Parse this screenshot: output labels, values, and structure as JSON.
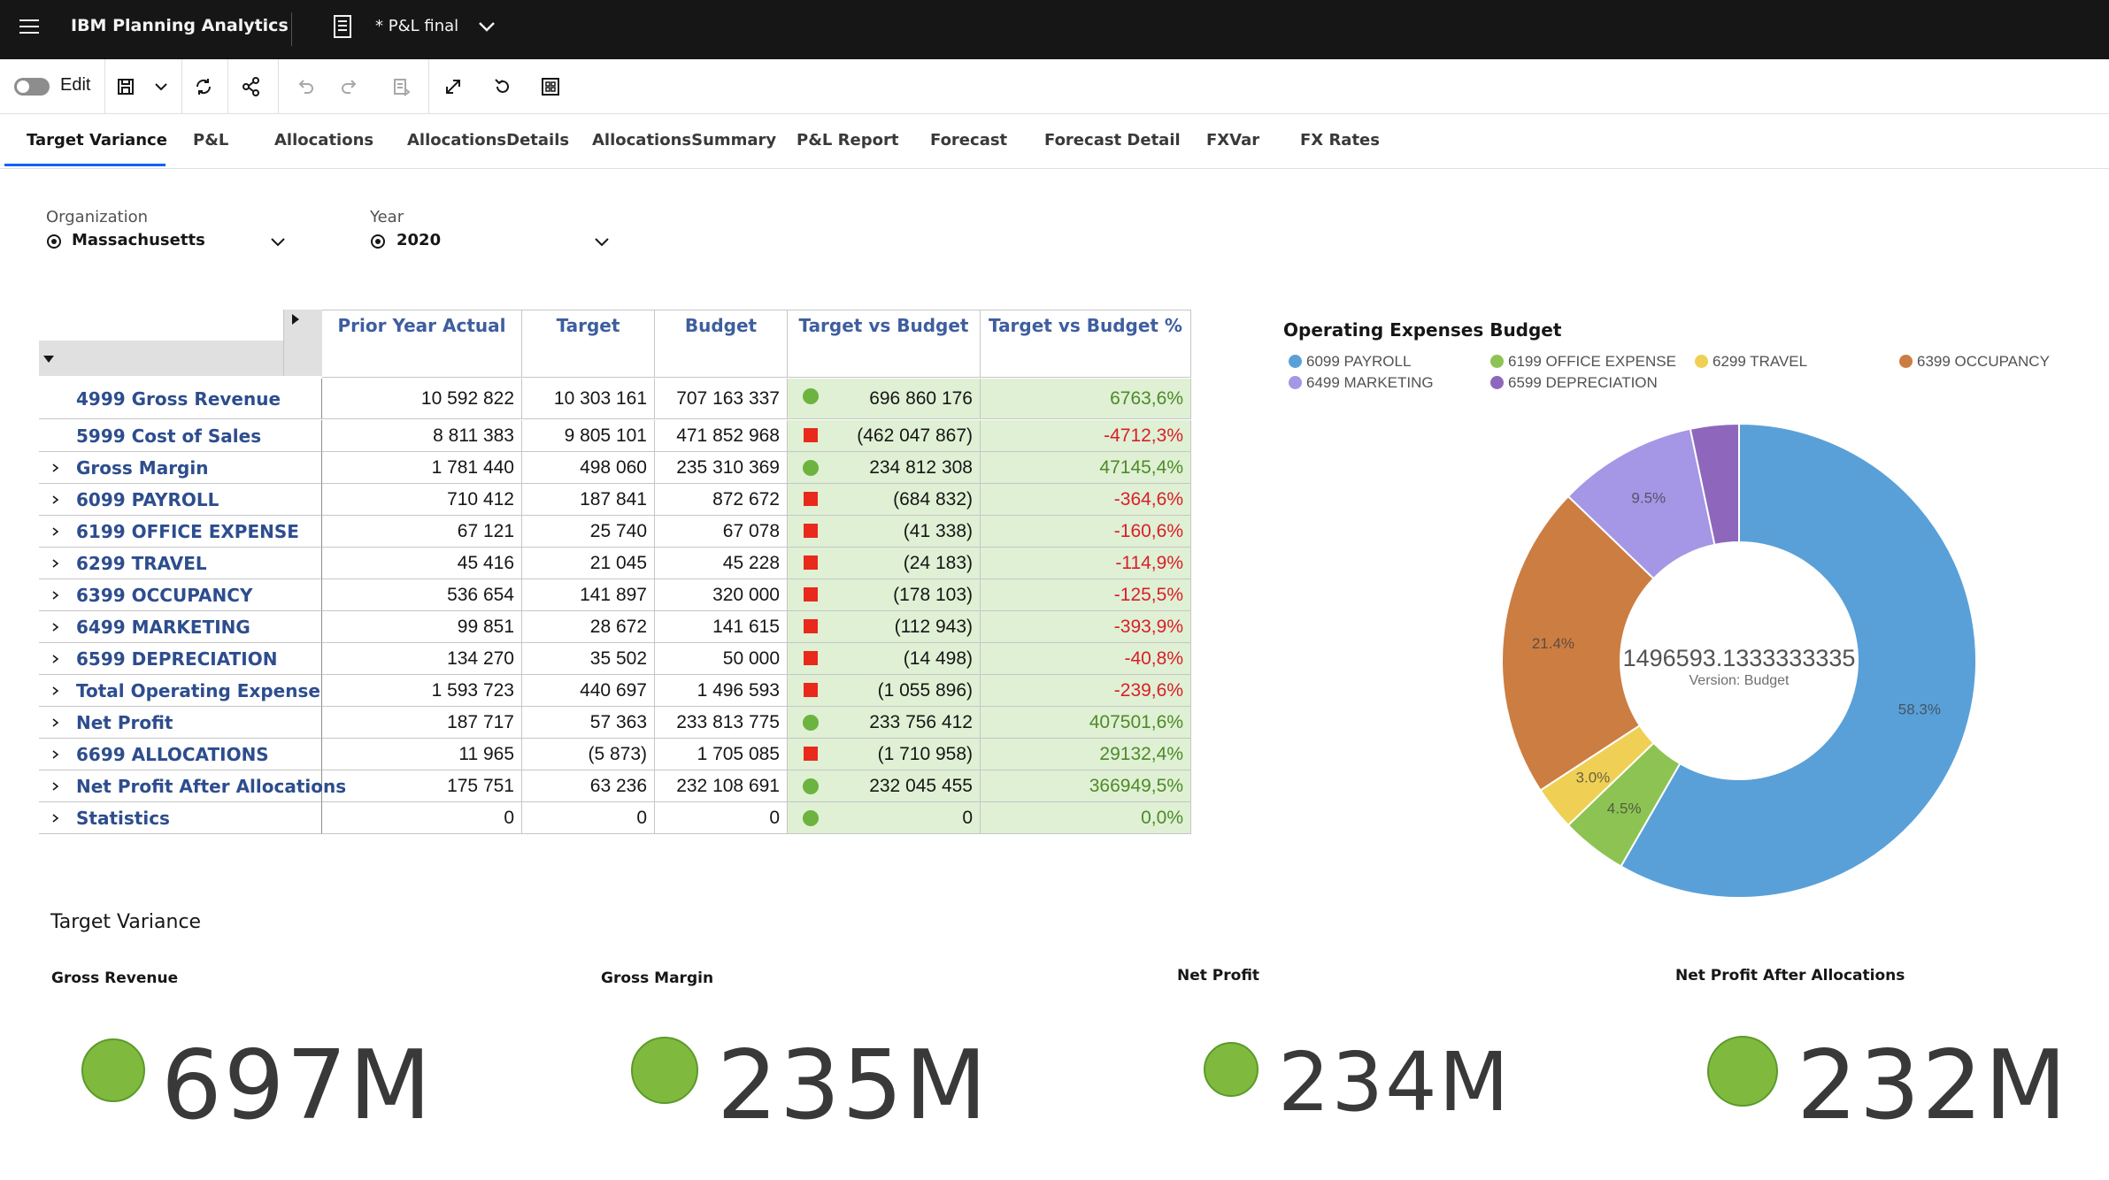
{
  "app": {
    "name": "IBM Planning Analytics",
    "book_title": "* P&L final"
  },
  "toolbar": {
    "edit_label": "Edit"
  },
  "tabs": [
    {
      "label": "Target Variance"
    },
    {
      "label": "P&L"
    },
    {
      "label": "Allocations"
    },
    {
      "label": "AllocationsDetails"
    },
    {
      "label": "AllocationsSummary"
    },
    {
      "label": "P&L Report"
    },
    {
      "label": "Forecast"
    },
    {
      "label": "Forecast Detail"
    },
    {
      "label": "FXVar"
    },
    {
      "label": "FX Rates"
    }
  ],
  "filters": {
    "organization": {
      "label": "Organization",
      "value": "Massachusetts"
    },
    "year": {
      "label": "Year",
      "value": "2020"
    }
  },
  "table": {
    "columns": [
      "Prior Year Actual",
      "Target",
      "Budget",
      "Target vs Budget",
      "Target vs Budget %"
    ],
    "rows": [
      {
        "label": "4999 Gross Revenue",
        "expand": false,
        "pya": "10 592 822",
        "target": "10 303 161",
        "budget": "707 163 337",
        "status": "green",
        "tvb": "696 860 176",
        "pct": "6763,6%",
        "pct_sign": "pos"
      },
      {
        "label": "5999 Cost of Sales",
        "expand": false,
        "pya": "8 811 383",
        "target": "9 805 101",
        "budget": "471 852 968",
        "status": "red",
        "tvb": "(462 047 867)",
        "pct": "-4712,3%",
        "pct_sign": "neg"
      },
      {
        "label": "Gross Margin",
        "expand": true,
        "pya": "1 781 440",
        "target": "498 060",
        "budget": "235 310 369",
        "status": "green",
        "tvb": "234 812 308",
        "pct": "47145,4%",
        "pct_sign": "pos"
      },
      {
        "label": "6099 PAYROLL",
        "expand": true,
        "pya": "710 412",
        "target": "187 841",
        "budget": "872 672",
        "status": "red",
        "tvb": "(684 832)",
        "pct": "-364,6%",
        "pct_sign": "neg"
      },
      {
        "label": "6199 OFFICE EXPENSE",
        "expand": true,
        "pya": "67 121",
        "target": "25 740",
        "budget": "67 078",
        "status": "red",
        "tvb": "(41 338)",
        "pct": "-160,6%",
        "pct_sign": "neg"
      },
      {
        "label": "6299 TRAVEL",
        "expand": true,
        "pya": "45 416",
        "target": "21 045",
        "budget": "45 228",
        "status": "red",
        "tvb": "(24 183)",
        "pct": "-114,9%",
        "pct_sign": "neg"
      },
      {
        "label": "6399 OCCUPANCY",
        "expand": true,
        "pya": "536 654",
        "target": "141 897",
        "budget": "320 000",
        "status": "red",
        "tvb": "(178 103)",
        "pct": "-125,5%",
        "pct_sign": "neg"
      },
      {
        "label": "6499 MARKETING",
        "expand": true,
        "pya": "99 851",
        "target": "28 672",
        "budget": "141 615",
        "status": "red",
        "tvb": "(112 943)",
        "pct": "-393,9%",
        "pct_sign": "neg"
      },
      {
        "label": "6599 DEPRECIATION",
        "expand": true,
        "pya": "134 270",
        "target": "35 502",
        "budget": "50 000",
        "status": "red",
        "tvb": "(14 498)",
        "pct": "-40,8%",
        "pct_sign": "neg"
      },
      {
        "label": "Total Operating Expense",
        "expand": true,
        "pya": "1 593 723",
        "target": "440 697",
        "budget": "1 496 593",
        "status": "red",
        "tvb": "(1 055 896)",
        "pct": "-239,6%",
        "pct_sign": "neg"
      },
      {
        "label": "Net Profit",
        "expand": true,
        "pya": "187 717",
        "target": "57 363",
        "budget": "233 813 775",
        "status": "green",
        "tvb": "233 756 412",
        "pct": "407501,6%",
        "pct_sign": "pos"
      },
      {
        "label": "6699 ALLOCATIONS",
        "expand": true,
        "pya": "11 965",
        "target": "(5 873)",
        "budget": "1 705 085",
        "status": "red",
        "tvb": "(1 710 958)",
        "pct": "29132,4%",
        "pct_sign": "pos"
      },
      {
        "label": "Net Profit After Allocations",
        "expand": true,
        "pya": "175 751",
        "target": "63 236",
        "budget": "232 108 691",
        "status": "green",
        "tvb": "232 045 455",
        "pct": "366949,5%",
        "pct_sign": "pos"
      },
      {
        "label": "Statistics",
        "expand": true,
        "pya": "0",
        "target": "0",
        "budget": "0",
        "status": "green",
        "tvb": "0",
        "pct": "0,0%",
        "pct_sign": "pos"
      }
    ]
  },
  "chart_data": {
    "type": "pie",
    "title": "Operating Expenses Budget",
    "center_value": "1496593.1333333335",
    "center_label": "Version: Budget",
    "legend_position": "top",
    "series": [
      {
        "name": "6099 PAYROLL",
        "value": 58.3,
        "color": "#5aa0d8"
      },
      {
        "name": "6199 OFFICE EXPENSE",
        "value": 4.5,
        "color": "#8dc353"
      },
      {
        "name": "6299 TRAVEL",
        "value": 3.0,
        "color": "#f0d054"
      },
      {
        "name": "6399 OCCUPANCY",
        "value": 21.4,
        "color": "#cc7d42"
      },
      {
        "name": "6499 MARKETING",
        "value": 9.5,
        "color": "#a596e6"
      },
      {
        "name": "6599 DEPRECIATION",
        "value": 3.3,
        "color": "#8e67bd"
      }
    ],
    "slice_labels": [
      "58.3%",
      "4.5%",
      "3.0%",
      "21.4%",
      "9.5%",
      ""
    ]
  },
  "kpis": {
    "section_title": "Target Variance",
    "items": [
      {
        "label": "Gross Revenue",
        "value": "697M"
      },
      {
        "label": "Gross Margin",
        "value": "235M"
      },
      {
        "label": "Net Profit",
        "value": "234M"
      },
      {
        "label": "Net Profit After Allocations",
        "value": "232M"
      }
    ]
  }
}
